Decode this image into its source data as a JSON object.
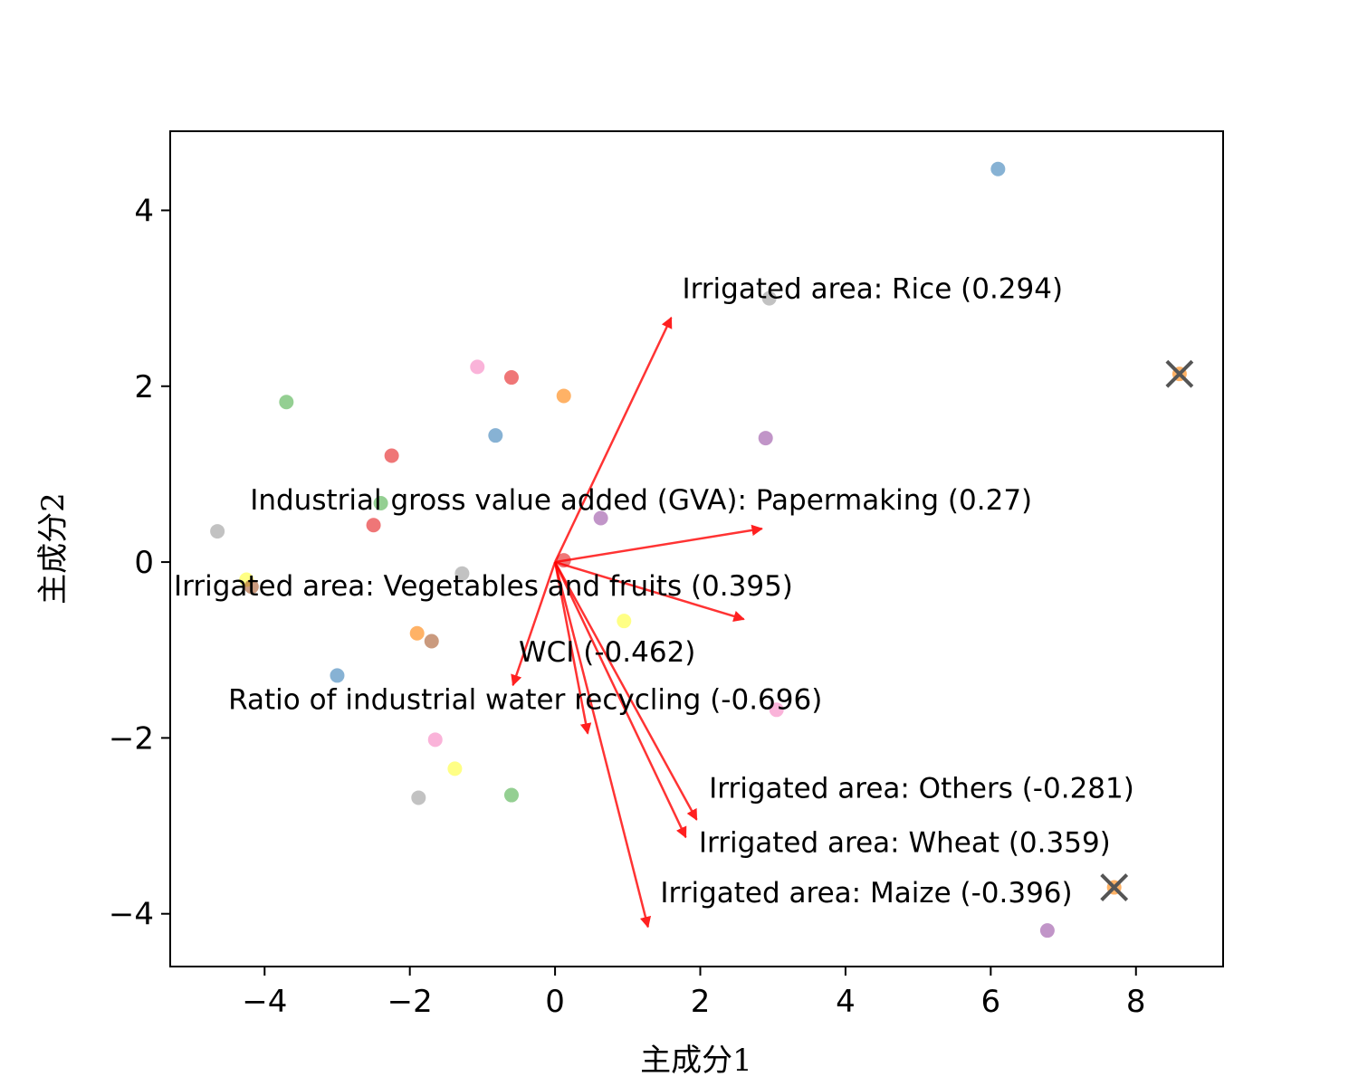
{
  "chart_data": {
    "type": "scatter",
    "title": "",
    "xlabel": "主成分1",
    "ylabel": "主成分2",
    "xlim": [
      -5.3,
      9.2
    ],
    "ylim": [
      -4.6,
      4.9
    ],
    "xticks": [
      -4,
      -2,
      0,
      2,
      4,
      6,
      8
    ],
    "yticks": [
      -4,
      -2,
      0,
      2,
      4
    ],
    "xtick_labels": [
      "−4",
      "−2",
      "0",
      "2",
      "4",
      "6",
      "8"
    ],
    "ytick_labels": [
      "−4",
      "−2",
      "0",
      "2",
      "4"
    ],
    "grid": false,
    "points": [
      {
        "x": 6.1,
        "y": 4.47,
        "color": "#377eb8"
      },
      {
        "x": 2.95,
        "y": 3.0,
        "color": "#999999"
      },
      {
        "x": -1.07,
        "y": 2.22,
        "color": "#f781bf"
      },
      {
        "x": -0.6,
        "y": 2.1,
        "color": "#e41a1c"
      },
      {
        "x": 0.12,
        "y": 1.89,
        "color": "#ff7f00"
      },
      {
        "x": -3.7,
        "y": 1.82,
        "color": "#4daf4a"
      },
      {
        "x": -0.82,
        "y": 1.44,
        "color": "#377eb8"
      },
      {
        "x": 2.9,
        "y": 1.41,
        "color": "#984ea3"
      },
      {
        "x": -2.25,
        "y": 1.21,
        "color": "#e41a1c"
      },
      {
        "x": -2.4,
        "y": 0.67,
        "color": "#4daf4a"
      },
      {
        "x": 0.63,
        "y": 0.5,
        "color": "#984ea3"
      },
      {
        "x": -2.5,
        "y": 0.42,
        "color": "#e41a1c"
      },
      {
        "x": -4.65,
        "y": 0.35,
        "color": "#999999"
      },
      {
        "x": 0.12,
        "y": 0.02,
        "color": "#e41a1c"
      },
      {
        "x": -1.28,
        "y": -0.13,
        "color": "#999999"
      },
      {
        "x": -4.25,
        "y": -0.2,
        "color": "#ffff33"
      },
      {
        "x": -4.18,
        "y": -0.28,
        "color": "#a65628"
      },
      {
        "x": 0.95,
        "y": -0.67,
        "color": "#ffff33"
      },
      {
        "x": -1.9,
        "y": -0.81,
        "color": "#ff7f00"
      },
      {
        "x": -1.7,
        "y": -0.9,
        "color": "#a65628"
      },
      {
        "x": -3.0,
        "y": -1.29,
        "color": "#377eb8"
      },
      {
        "x": 3.05,
        "y": -1.68,
        "color": "#f781bf"
      },
      {
        "x": -1.65,
        "y": -2.02,
        "color": "#f781bf"
      },
      {
        "x": -1.38,
        "y": -2.35,
        "color": "#ffff33"
      },
      {
        "x": -0.6,
        "y": -2.65,
        "color": "#4daf4a"
      },
      {
        "x": -1.88,
        "y": -2.68,
        "color": "#999999"
      },
      {
        "x": 6.78,
        "y": -4.19,
        "color": "#984ea3"
      },
      {
        "x": 8.6,
        "y": 2.14,
        "color": "#ff7f00"
      },
      {
        "x": 7.7,
        "y": -3.7,
        "color": "#ff7f00"
      }
    ],
    "centroids": [
      {
        "x": 8.6,
        "y": 2.14
      },
      {
        "x": 7.7,
        "y": -3.7
      }
    ],
    "loadings": [
      {
        "label": "Irrigated area: Rice (0.294)",
        "x": 1.6,
        "y": 2.78,
        "label_x": 1.75,
        "label_y": 3.0
      },
      {
        "label": "Industrial gross value added (GVA): Papermaking (0.27)",
        "x": 2.85,
        "y": 0.38,
        "label_x": -4.2,
        "label_y": 0.6
      },
      {
        "label": "Irrigated area: Vegetables and fruits (0.395)",
        "x": 2.6,
        "y": -0.65,
        "label_x": -5.25,
        "label_y": -0.38
      },
      {
        "label": "WCI (-0.462)",
        "x": -0.58,
        "y": -1.4,
        "label_x": -0.5,
        "label_y": -1.13
      },
      {
        "label": "Ratio of industrial water recycling (-0.696)",
        "x": 0.45,
        "y": -1.95,
        "label_x": -4.5,
        "label_y": -1.67
      },
      {
        "label": "Irrigated area: Others (-0.281)",
        "x": 1.95,
        "y": -2.93,
        "label_x": 2.12,
        "label_y": -2.68
      },
      {
        "label": "Irrigated area: Wheat (0.359)",
        "x": 1.8,
        "y": -3.13,
        "label_x": 1.98,
        "label_y": -3.3
      },
      {
        "label": "Irrigated area: Maize (-0.396)",
        "x": 1.28,
        "y": -4.15,
        "label_x": 1.45,
        "label_y": -3.87
      }
    ],
    "loading_color": "#ff0000"
  }
}
